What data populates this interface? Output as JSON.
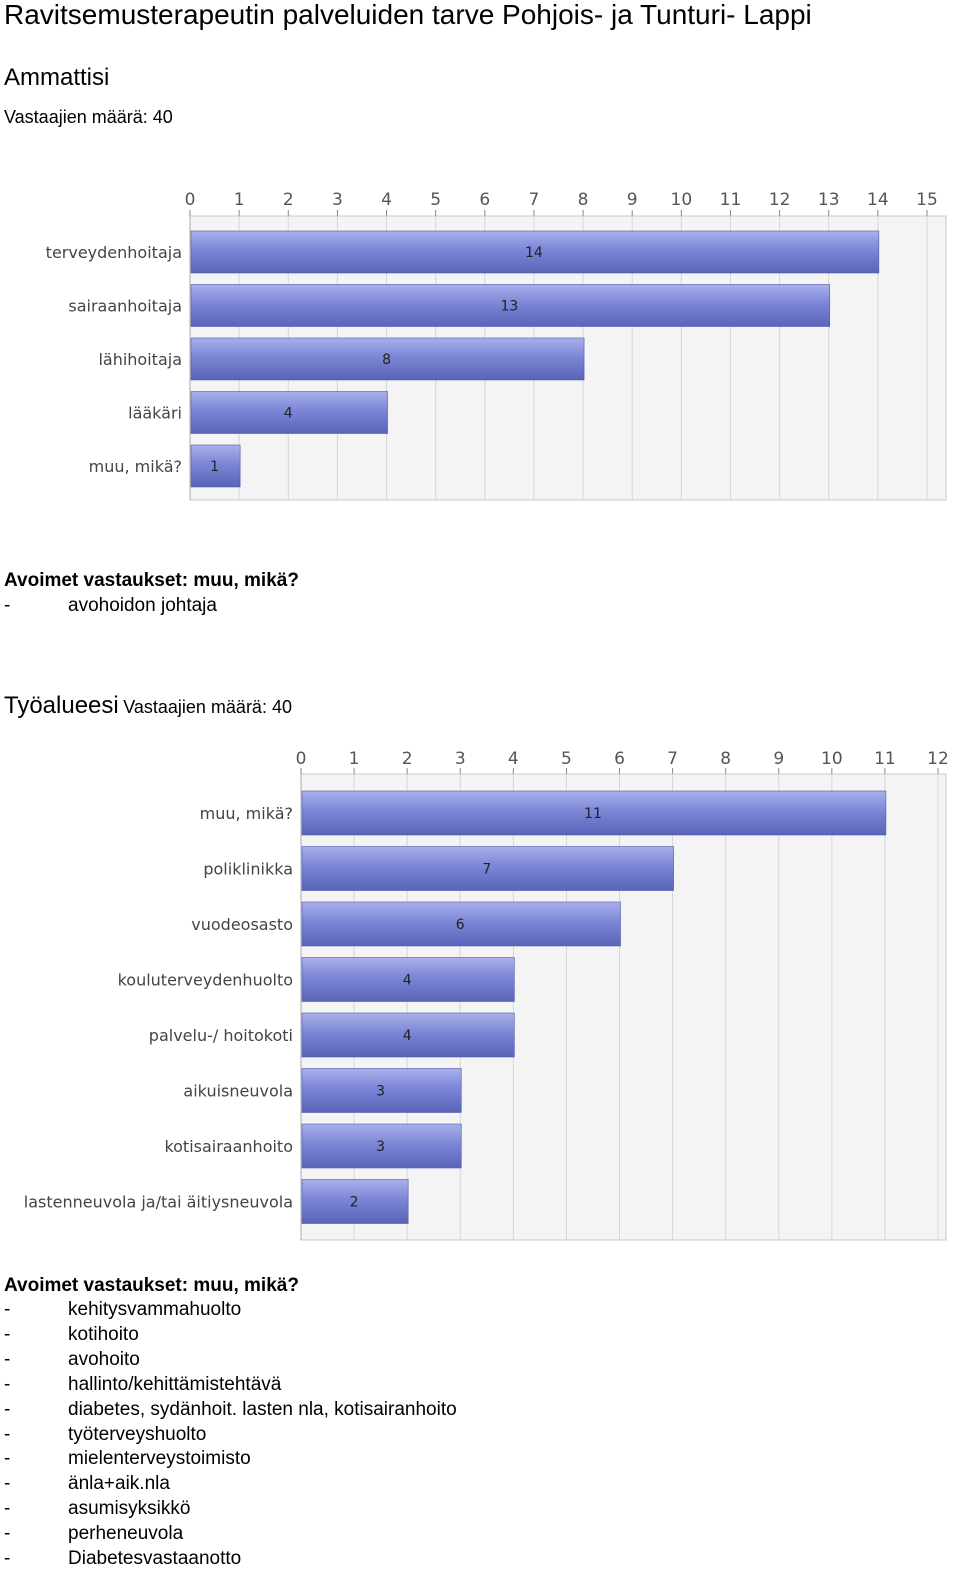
{
  "page_title": "Ravitsemusterapeutin palveluiden tarve Pohjois- ja Tunturi- Lappi",
  "section1": {
    "heading": "Ammattisi",
    "respondents": "Vastaajien määrä: 40",
    "open_heading": "Avoimet vastaukset: muu, mikä?",
    "open_answers": [
      "avohoidon johtaja"
    ]
  },
  "section2": {
    "heading": "Työalueesi",
    "respondents": "Vastaajien määrä: 40",
    "open_heading": "Avoimet vastaukset: muu, mikä?",
    "open_answers": [
      "kehitysvammahuolto",
      "kotihoito",
      "avohoito",
      "hallinto/kehittämistehtävä",
      "diabetes, sydänhoit. lasten nla, kotisairanhoito",
      "työterveyshuolto",
      "mielenterveystoimisto",
      "änla+aik.nla",
      "asumisyksikkö",
      "perheneuvola",
      "Diabetesvastaanotto"
    ]
  },
  "list_dash": "-",
  "colors": {
    "bar_fill": "#7b86d6",
    "bar_top": "#a9b0ea",
    "bar_bottom": "#5a64b8",
    "plot_bg": "#f4f4f4",
    "grid": "#d6d6d6",
    "frame": "#c8c8c8"
  },
  "chart_data": [
    {
      "type": "bar",
      "orientation": "horizontal",
      "categories": [
        "terveydenhoitaja",
        "sairaanhoitaja",
        "lähihoitaja",
        "lääkäri",
        "muu, mikä?"
      ],
      "values": [
        14,
        13,
        8,
        4,
        1
      ],
      "xlim": [
        0,
        15
      ],
      "ticks": [
        "0",
        "1",
        "2",
        "3",
        "4",
        "5",
        "6",
        "7",
        "8",
        "9",
        "10",
        "11",
        "12",
        "13",
        "14",
        "15"
      ],
      "axis_position": "top",
      "grid": true
    },
    {
      "type": "bar",
      "orientation": "horizontal",
      "categories": [
        "muu, mikä?",
        "poliklinikka",
        "vuodeosasto",
        "kouluterveydenhuolto",
        "palvelu-/ hoitokoti",
        "aikuisneuvola",
        "kotisairaanhoito",
        "lastenneuvola ja/tai äitiysneuvola"
      ],
      "values": [
        11,
        7,
        6,
        4,
        4,
        3,
        3,
        2
      ],
      "xlim": [
        0,
        12
      ],
      "ticks": [
        "0",
        "1",
        "2",
        "3",
        "4",
        "5",
        "6",
        "7",
        "8",
        "9",
        "10",
        "11",
        "12"
      ],
      "axis_position": "top",
      "grid": true
    }
  ]
}
